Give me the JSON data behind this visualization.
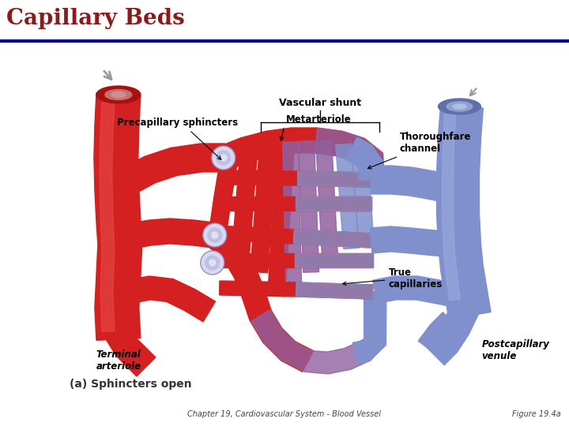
{
  "title": "Capillary Beds",
  "title_color": "#8B1A1A",
  "title_fontsize": 20,
  "bg_color": "#FFFFFF",
  "header_line_color": "#00008B",
  "footer_left": "Chapter 19, Cardiovascular System - Blood Vessel",
  "footer_right": "Figure 19.4a",
  "footer_fontsize": 7,
  "RED": "#D42020",
  "RED_DARK": "#AA1010",
  "RED_LIGHT": "#E85050",
  "BLUE": "#8090CC",
  "BLUE_DARK": "#6070AA",
  "BLUE_LIGHT": "#A0B0E0",
  "PURPLE": "#9060A0",
  "GRAY": "#999999",
  "LGRAY": "#CCCCCC",
  "DGRAY": "#555555",
  "WHITE": "#FFFFFF",
  "CREAM": "#F0E8E0"
}
